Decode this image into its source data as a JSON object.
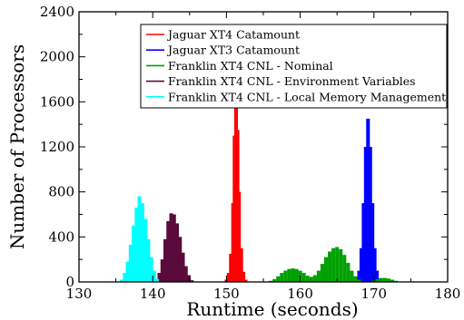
{
  "chart_data": {
    "type": "bar",
    "title": "",
    "xlabel": "Runtime (seconds)",
    "ylabel": "Number of Processors",
    "xlim": [
      130,
      180
    ],
    "ylim": [
      0,
      2400
    ],
    "xticks": [
      130,
      140,
      150,
      160,
      170,
      180
    ],
    "yticks": [
      0,
      400,
      800,
      1200,
      1600,
      2000,
      2400
    ],
    "grid": false,
    "legend_position": "top-center",
    "series": [
      {
        "name": "Jaguar XT4 Catamount",
        "color": "#ff0000",
        "x": [
          150.0,
          150.3,
          150.6,
          150.9,
          151.1,
          151.3,
          151.5,
          151.7,
          152.0,
          152.3,
          152.6
        ],
        "values": [
          20,
          80,
          250,
          700,
          1300,
          1570,
          1350,
          800,
          300,
          90,
          20
        ]
      },
      {
        "name": "Jaguar XT3 Catamount",
        "color": "#0000ff",
        "x": [
          167.7,
          168.0,
          168.3,
          168.6,
          168.9,
          169.2,
          169.5,
          169.8,
          170.1,
          170.4,
          170.7
        ],
        "values": [
          30,
          100,
          300,
          700,
          1200,
          1450,
          1200,
          700,
          300,
          100,
          30
        ]
      },
      {
        "name": "Franklin XT4 CNL - Nominal",
        "color": "#00a000",
        "x": [
          156.0,
          156.5,
          157.0,
          157.5,
          158.0,
          158.5,
          159.0,
          159.5,
          160.0,
          160.5,
          161.0,
          161.5,
          162.0,
          162.5,
          163.0,
          163.5,
          164.0,
          164.5,
          165.0,
          165.5,
          166.0,
          166.5,
          167.0,
          167.5,
          168.0,
          170.0,
          170.5,
          171.0,
          171.5,
          172.0,
          172.5,
          173.0
        ],
        "values": [
          10,
          25,
          50,
          80,
          100,
          115,
          120,
          115,
          100,
          80,
          55,
          45,
          60,
          100,
          160,
          220,
          270,
          300,
          310,
          290,
          240,
          170,
          100,
          50,
          20,
          15,
          25,
          35,
          35,
          30,
          20,
          10
        ]
      },
      {
        "name": "Franklin XT4 CNL - Environment Variables",
        "color": "#5a0a3c",
        "x": [
          140.5,
          140.9,
          141.3,
          141.7,
          142.1,
          142.5,
          142.9,
          143.3,
          143.7,
          144.1,
          144.5,
          144.9,
          145.3
        ],
        "values": [
          20,
          80,
          200,
          380,
          540,
          610,
          600,
          520,
          400,
          260,
          140,
          60,
          15
        ]
      },
      {
        "name": "Franklin XT4 CNL - Local Memory Management",
        "color": "#00ffff",
        "x": [
          135.8,
          136.2,
          136.6,
          137.0,
          137.4,
          137.8,
          138.2,
          138.6,
          139.0,
          139.4,
          139.8,
          140.2,
          140.6
        ],
        "values": [
          20,
          80,
          180,
          330,
          500,
          660,
          760,
          700,
          560,
          380,
          220,
          100,
          25
        ]
      }
    ]
  }
}
